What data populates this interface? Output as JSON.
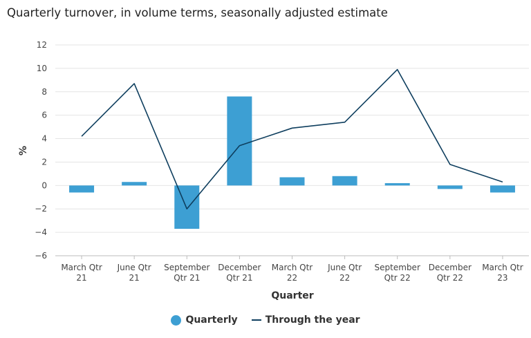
{
  "chart_data": {
    "type": "bar",
    "title": "Quarterly turnover, in volume terms, seasonally adjusted estimate",
    "xlabel": "Quarter",
    "ylabel": "%",
    "ylim": [
      -6,
      12
    ],
    "yticks": [
      12,
      10,
      8,
      6,
      4,
      2,
      0,
      -2,
      -4,
      -6
    ],
    "ytick_labels": [
      "12",
      "10",
      "8",
      "6",
      "4",
      "2",
      "0",
      "−2",
      "−4",
      "−6"
    ],
    "categories": [
      [
        "March Qtr",
        "21"
      ],
      [
        "June Qtr",
        "21"
      ],
      [
        "September",
        "Qtr 21"
      ],
      [
        "December",
        "Qtr 21"
      ],
      [
        "March Qtr",
        "22"
      ],
      [
        "June Qtr",
        "22"
      ],
      [
        "September",
        "Qtr 22"
      ],
      [
        "December",
        "Qtr 22"
      ],
      [
        "March Qtr",
        "23"
      ]
    ],
    "series": [
      {
        "name": "Quarterly",
        "type": "bar",
        "color": "#3d9fd3",
        "values": [
          -0.6,
          0.3,
          -3.7,
          7.6,
          0.7,
          0.8,
          0.2,
          -0.3,
          -0.6
        ]
      },
      {
        "name": "Through the year",
        "type": "line",
        "color": "#0e3e5e",
        "values": [
          4.2,
          8.7,
          -2.0,
          3.4,
          4.9,
          5.4,
          9.9,
          1.8,
          0.3
        ]
      }
    ],
    "grid": true,
    "legend_position": "bottom-center"
  }
}
